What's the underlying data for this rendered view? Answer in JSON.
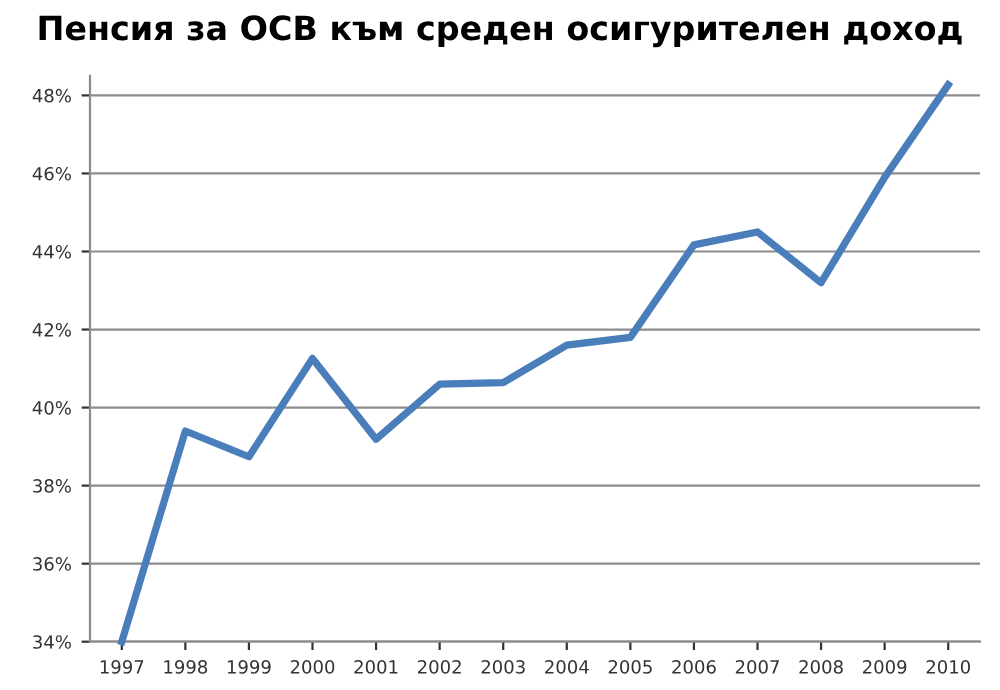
{
  "chart_data": {
    "type": "line",
    "title": "Пенсия за ОСВ към среден осигурителен доход",
    "categories": [
      "1997",
      "1998",
      "1999",
      "2000",
      "2001",
      "2002",
      "2003",
      "2004",
      "2005",
      "2006",
      "2007",
      "2008",
      "2009",
      "2010"
    ],
    "series": [
      {
        "color": "#4a7ebb",
        "values": [
          34.0,
          39.4,
          38.74,
          41.26,
          39.19,
          40.6,
          40.64,
          41.6,
          41.8,
          44.17,
          44.5,
          43.2,
          45.9,
          48.27
        ]
      }
    ],
    "ylim": [
      34,
      48.5
    ],
    "yticks": [
      {
        "value": 34,
        "label": "34%"
      },
      {
        "value": 36,
        "label": "36%"
      },
      {
        "value": 38,
        "label": "38%"
      },
      {
        "value": 40,
        "label": "40%"
      },
      {
        "value": 42,
        "label": "42%"
      },
      {
        "value": 44,
        "label": "44%"
      },
      {
        "value": 46,
        "label": "46%"
      },
      {
        "value": 48,
        "label": "48%"
      }
    ],
    "grid": "y",
    "marker": "none",
    "line_style": "solid"
  }
}
